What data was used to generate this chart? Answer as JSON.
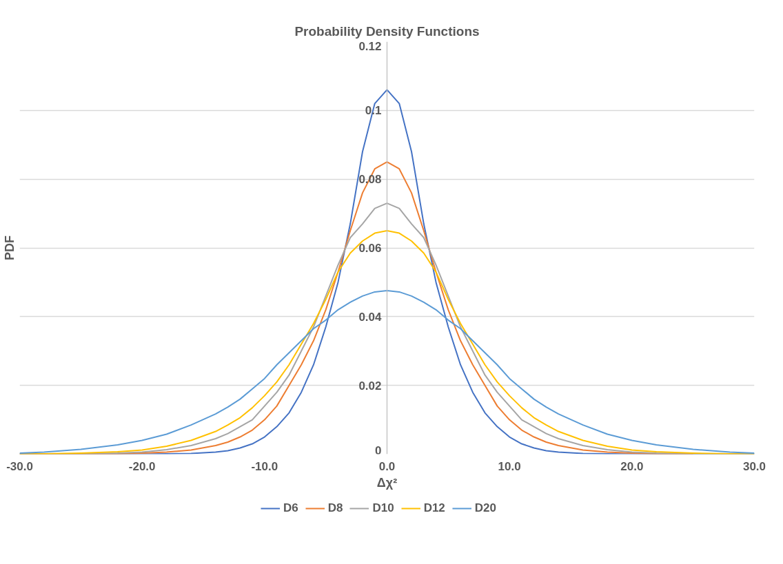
{
  "chart_data": {
    "type": "line",
    "title": "Probability Density Functions",
    "xlabel": "Δχ²",
    "ylabel": "PDF",
    "x": [
      -30,
      -28,
      -25,
      -22,
      -20,
      -18,
      -16,
      -14,
      -13,
      -12,
      -11,
      -10,
      -9,
      -8,
      -7,
      -6,
      -5,
      -4,
      -3,
      -2,
      -1,
      0,
      1,
      2,
      3,
      4,
      5,
      6,
      7,
      8,
      9,
      10,
      11,
      12,
      13,
      14,
      16,
      18,
      20,
      22,
      25,
      28,
      30
    ],
    "series": [
      {
        "name": "D6",
        "color": "#4472c4",
        "values": [
          0,
          0,
          0,
          0,
          0,
          0.0001,
          0.0002,
          0.0006,
          0.001,
          0.0018,
          0.003,
          0.005,
          0.008,
          0.012,
          0.018,
          0.026,
          0.037,
          0.05,
          0.067,
          0.088,
          0.102,
          0.106,
          0.102,
          0.088,
          0.067,
          0.05,
          0.037,
          0.026,
          0.018,
          0.012,
          0.008,
          0.005,
          0.003,
          0.0018,
          0.001,
          0.0006,
          0.0002,
          0.0001,
          0,
          0,
          0,
          0,
          0
        ]
      },
      {
        "name": "D8",
        "color": "#ed7d31",
        "values": [
          0,
          0,
          0,
          0.0001,
          0.0003,
          0.0006,
          0.0012,
          0.0025,
          0.0035,
          0.005,
          0.007,
          0.01,
          0.014,
          0.02,
          0.026,
          0.033,
          0.042,
          0.053,
          0.065,
          0.076,
          0.083,
          0.085,
          0.083,
          0.076,
          0.065,
          0.053,
          0.042,
          0.033,
          0.026,
          0.02,
          0.014,
          0.01,
          0.007,
          0.005,
          0.0035,
          0.0025,
          0.0012,
          0.0006,
          0.0003,
          0.0001,
          0,
          null,
          null
        ]
      },
      {
        "name": "D10",
        "color": "#a5a5a5",
        "values": [
          0,
          0,
          0.0001,
          0.0003,
          0.0006,
          0.0013,
          0.0025,
          0.0045,
          0.006,
          0.008,
          0.01,
          0.014,
          0.018,
          0.023,
          0.03,
          0.037,
          0.046,
          0.055,
          0.063,
          0.067,
          0.0715,
          0.073,
          0.0715,
          0.067,
          0.063,
          0.055,
          0.046,
          0.037,
          0.03,
          0.023,
          0.018,
          0.014,
          0.01,
          0.008,
          0.006,
          0.0045,
          0.0025,
          0.0013,
          0.0006,
          0.0003,
          0.0001,
          0,
          0
        ]
      },
      {
        "name": "D12",
        "color": "#ffc000",
        "values": [
          0,
          0.0001,
          0.0003,
          0.0007,
          0.0012,
          0.0023,
          0.004,
          0.0066,
          0.0085,
          0.0106,
          0.0135,
          0.017,
          0.021,
          0.026,
          0.032,
          0.038,
          0.045,
          0.053,
          0.0585,
          0.062,
          0.0643,
          0.065,
          0.0643,
          0.062,
          0.0585,
          0.053,
          0.045,
          0.038,
          0.032,
          0.026,
          0.021,
          0.017,
          0.0135,
          0.0106,
          0.0085,
          0.0066,
          0.004,
          0.0023,
          0.0012,
          0.0007,
          0.0003,
          0.0001,
          0
        ]
      },
      {
        "name": "D20",
        "color": "#5b9bd5",
        "values": [
          0.0003,
          0.0006,
          0.0014,
          0.0027,
          0.004,
          0.0058,
          0.0085,
          0.0117,
          0.0137,
          0.016,
          0.019,
          0.022,
          0.026,
          0.0295,
          0.033,
          0.0365,
          0.039,
          0.042,
          0.0442,
          0.046,
          0.0472,
          0.0476,
          0.0472,
          0.046,
          0.0442,
          0.042,
          0.039,
          0.0365,
          0.033,
          0.0295,
          0.026,
          0.022,
          0.019,
          0.016,
          0.0137,
          0.0117,
          0.0085,
          0.0058,
          0.004,
          0.0027,
          0.0014,
          0.0006,
          0.0003
        ]
      }
    ],
    "xlim": [
      -30,
      30
    ],
    "xticks": [
      {
        "value": -30,
        "label": "-30.0"
      },
      {
        "value": -20,
        "label": "-20.0"
      },
      {
        "value": -10,
        "label": "-10.0"
      },
      {
        "value": 0,
        "label": "0.0"
      },
      {
        "value": 10,
        "label": "10.0"
      },
      {
        "value": 20,
        "label": "20.0"
      },
      {
        "value": 30,
        "label": "30.0"
      }
    ],
    "ylim": [
      0,
      0.12
    ],
    "yticks": [
      0,
      0.02,
      0.04,
      0.06,
      0.08,
      0.1,
      0.12
    ],
    "grid": "y",
    "legend": "bottom",
    "line_style": "solid"
  }
}
